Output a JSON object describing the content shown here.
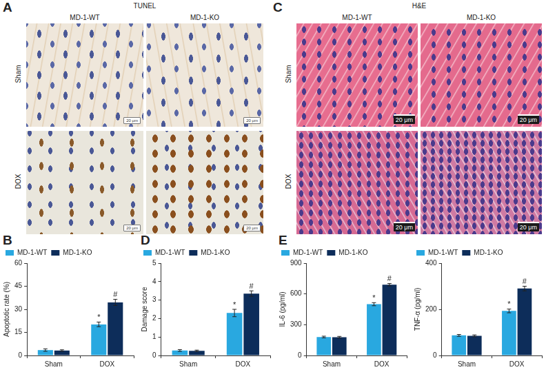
{
  "figure_panels": [
    {
      "panel": "A",
      "title": "TUNEL",
      "columns": [
        "MD-1-WT",
        "MD-1-KO"
      ],
      "rows": [
        "Sham",
        "DOX"
      ],
      "scale_bar": "20 μm"
    },
    {
      "panel": "C",
      "title": "H&E",
      "columns": [
        "MD-1-WT",
        "MD-1-KO"
      ],
      "rows": [
        "Sham",
        "DOX"
      ],
      "scale_bar": "20 μm"
    }
  ],
  "chart_data": [
    {
      "type": "bar",
      "panel": "B",
      "y_label": "Apoptotic rate (%)",
      "categories": [
        "Sham",
        "DOX"
      ],
      "series": [
        {
          "name": "MD-1-WT",
          "color": "#29a8e0",
          "values": [
            3.5,
            20.2
          ],
          "errors": [
            0.8,
            1.5
          ],
          "significance": [
            null,
            "*"
          ]
        },
        {
          "name": "MD-1-KO",
          "color": "#0d2d5a",
          "values": [
            3.2,
            34.5
          ],
          "errors": [
            0.5,
            2.0
          ],
          "significance": [
            null,
            "#"
          ]
        }
      ],
      "ylim": [
        0,
        60
      ],
      "yticks": [
        0,
        15,
        30,
        45,
        60
      ],
      "legend": "upper left",
      "grid": false
    },
    {
      "type": "bar",
      "panel": "D",
      "y_label": "Damage score",
      "categories": [
        "Sham",
        "DOX"
      ],
      "series": [
        {
          "name": "MD-1-WT",
          "color": "#29a8e0",
          "values": [
            0.27,
            2.3
          ],
          "errors": [
            0.05,
            0.2
          ],
          "significance": [
            null,
            "*"
          ]
        },
        {
          "name": "MD-1-KO",
          "color": "#0d2d5a",
          "values": [
            0.25,
            3.35
          ],
          "errors": [
            0.04,
            0.15
          ],
          "significance": [
            null,
            "#"
          ]
        }
      ],
      "ylim": [
        0,
        5
      ],
      "yticks": [
        0,
        1,
        2,
        3,
        4,
        5
      ],
      "legend": "upper left",
      "grid": false
    },
    {
      "type": "bar",
      "panel": "E",
      "y_label": "IL-6 (pg/ml)",
      "categories": [
        "Sham",
        "DOX"
      ],
      "series": [
        {
          "name": "MD-1-WT",
          "color": "#29a8e0",
          "values": [
            180,
            500
          ],
          "errors": [
            8,
            15
          ],
          "significance": [
            null,
            "*"
          ]
        },
        {
          "name": "MD-1-KO",
          "color": "#0d2d5a",
          "values": [
            178,
            690
          ],
          "errors": [
            8,
            12
          ],
          "significance": [
            null,
            "#"
          ]
        }
      ],
      "ylim": [
        0,
        900
      ],
      "yticks": [
        0,
        300,
        600,
        900
      ],
      "legend": "upper left",
      "grid": false
    },
    {
      "type": "bar",
      "y_label": "TNF-α (pg/ml)",
      "categories": [
        "Sham",
        "DOX"
      ],
      "series": [
        {
          "name": "MD-1-WT",
          "color": "#29a8e0",
          "values": [
            87,
            193
          ],
          "errors": [
            4,
            8
          ],
          "significance": [
            null,
            "*"
          ]
        },
        {
          "name": "MD-1-KO",
          "color": "#0d2d5a",
          "values": [
            85,
            290
          ],
          "errors": [
            4,
            10
          ],
          "significance": [
            null,
            "#"
          ]
        }
      ],
      "ylim": [
        0,
        400
      ],
      "yticks": [
        0,
        200,
        400
      ],
      "legend": "upper left",
      "grid": false
    }
  ]
}
